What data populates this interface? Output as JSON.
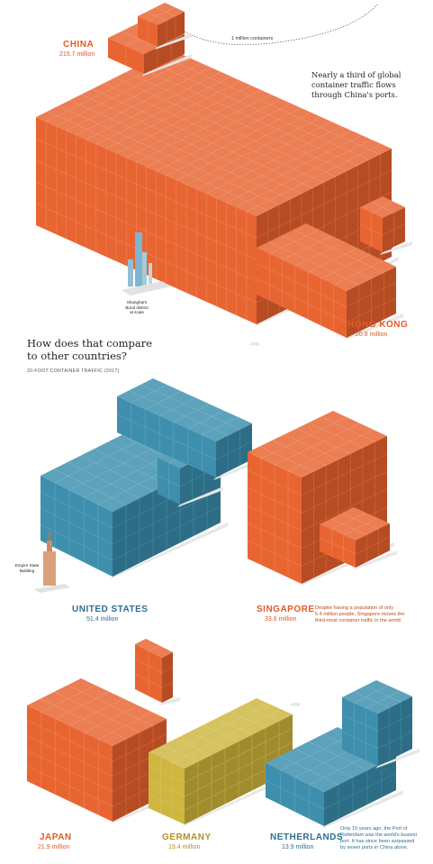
{
  "colors": {
    "orange": "#e8622e",
    "blue": "#3a8dac",
    "yellow": "#cdb43c",
    "orange_label": "#e05a28",
    "blue_label": "#2c6f94",
    "tan_label": "#b38f2a"
  },
  "legend": {
    "unit_label": "1 million containers"
  },
  "intro_note": {
    "lines": [
      "Nearly a third of global",
      "container traffic flows",
      "through China's ports."
    ]
  },
  "section": {
    "title_lines": [
      "How does that compare",
      "to other countries?"
    ],
    "subtitle": "20-FOOT CONTAINER TRAFFIC (2017)"
  },
  "landmarks": {
    "shanghai_lines": [
      "Shanghai's",
      "Bund district",
      "at scale"
    ],
    "empire_lines": [
      "Empire State",
      "Building"
    ]
  },
  "countries": [
    {
      "id": "china",
      "name": "CHINA",
      "value_text": "215.7 million",
      "value": 215.7,
      "color_key": "orange"
    },
    {
      "id": "hong-kong",
      "name": "HONG KONG",
      "value_text": "20.8 million",
      "value": 20.8,
      "color_key": "orange"
    },
    {
      "id": "united-states",
      "name": "UNITED STATES",
      "value_text": "51.4 million",
      "value": 51.4,
      "color_key": "blue"
    },
    {
      "id": "singapore",
      "name": "SINGAPORE",
      "value_text": "33.6 million",
      "value": 33.6,
      "color_key": "orange"
    },
    {
      "id": "japan",
      "name": "JAPAN",
      "value_text": "21.9 million",
      "value": 21.9,
      "color_key": "orange"
    },
    {
      "id": "germany",
      "name": "GERMANY",
      "value_text": "19.4 million",
      "value": 19.4,
      "color_key": "yellow"
    },
    {
      "id": "netherlands",
      "name": "NETHERLANDS",
      "value_text": "13.9 million",
      "value": 13.9,
      "color_key": "blue"
    }
  ],
  "notes": {
    "singapore_lines": [
      "Despite having a population of only",
      "5.4 million people, Singapore moves the",
      "third-most container traffic in the world."
    ],
    "netherlands_lines": [
      "Only 15 years ago, the Port of",
      "Rotterdam was the world's busiest",
      "port. It has since been surpassed",
      "by seven ports in China alone."
    ]
  }
}
